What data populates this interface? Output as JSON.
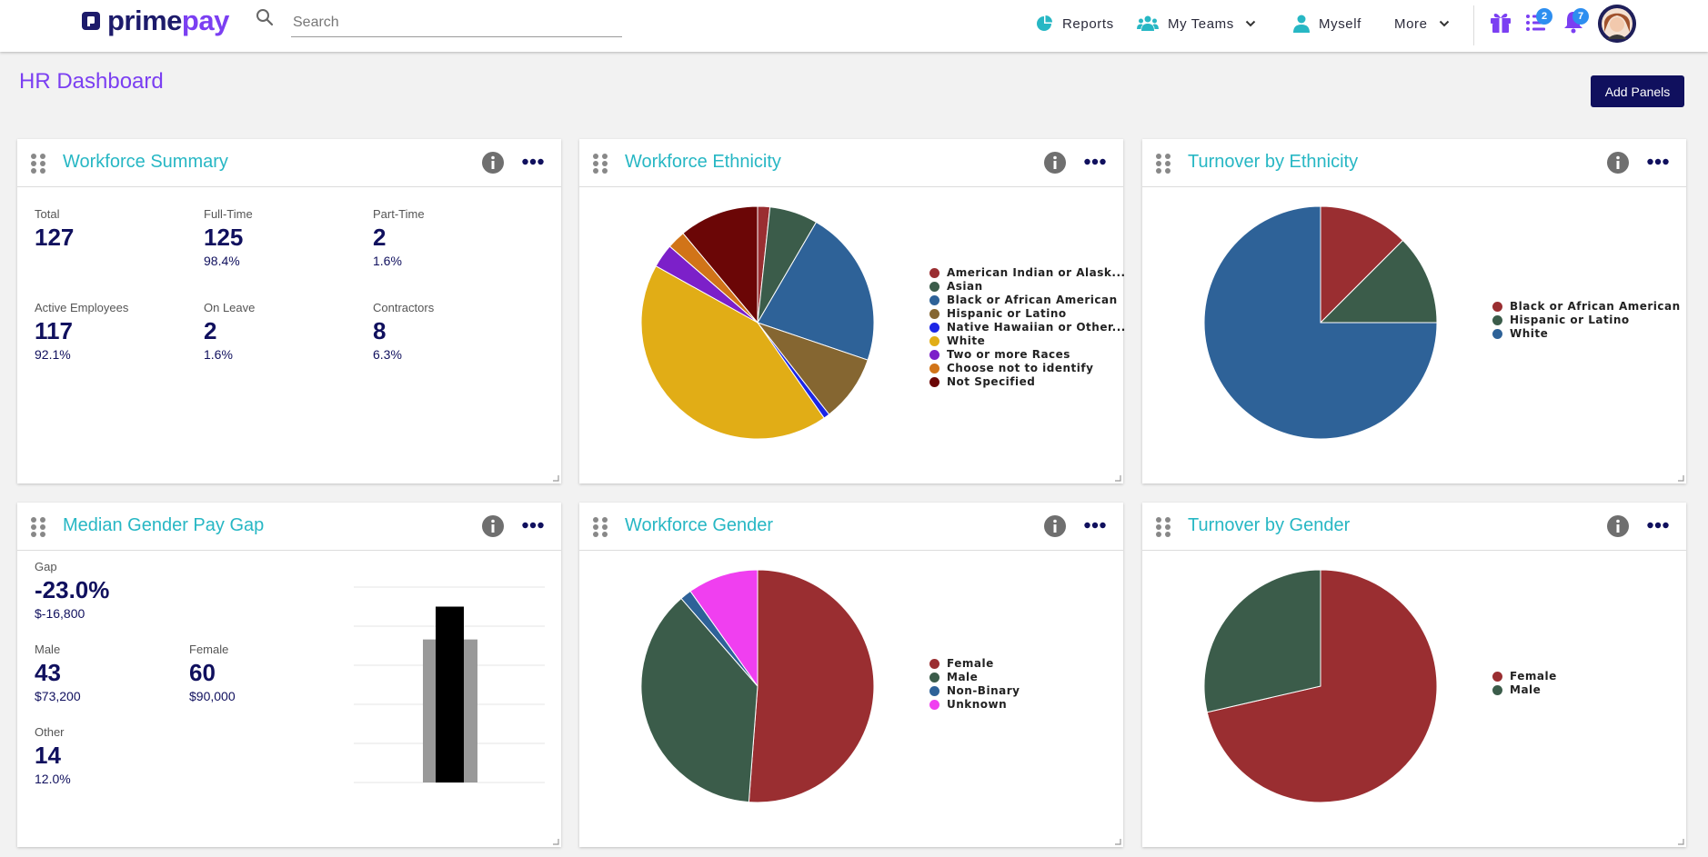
{
  "header": {
    "logo_part1": "prime",
    "logo_part2": "pay",
    "search_placeholder": "Search",
    "nav": {
      "reports": "Reports",
      "my_teams": "My Teams",
      "myself": "Myself",
      "more": "More"
    },
    "tasks_badge": "2",
    "notifications_badge": "7",
    "icons": [
      "pie-chart-icon",
      "team-icon",
      "person-icon",
      "chevron-down-icon",
      "gift-icon",
      "task-list-icon",
      "bell-icon"
    ]
  },
  "page": {
    "title": "HR Dashboard",
    "add_panels_label": "Add Panels"
  },
  "colors": {
    "brand_navy": "#10105e",
    "brand_purple": "#7b3ff2",
    "panel_title": "#27b7c4"
  },
  "panels": {
    "workforce_summary": {
      "title": "Workforce Summary",
      "stats": [
        {
          "label": "Total",
          "value": "127",
          "sub": ""
        },
        {
          "label": "Full-Time",
          "value": "125",
          "sub": "98.4%"
        },
        {
          "label": "Part-Time",
          "value": "2",
          "sub": "1.6%"
        },
        {
          "label": "Active Employees",
          "value": "117",
          "sub": "92.1%"
        },
        {
          "label": "On Leave",
          "value": "2",
          "sub": "1.6%"
        },
        {
          "label": "Contractors",
          "value": "8",
          "sub": "6.3%"
        }
      ]
    },
    "workforce_ethnicity": {
      "title": "Workforce Ethnicity"
    },
    "turnover_ethnicity": {
      "title": "Turnover by Ethnicity"
    },
    "gender_pay_gap": {
      "title": "Median Gender Pay Gap",
      "gap_label": "Gap",
      "gap_value": "-23.0%",
      "gap_amount": "$-16,800",
      "male_label": "Male",
      "male_value": "43",
      "male_amount": "$73,200",
      "female_label": "Female",
      "female_value": "60",
      "female_amount": "$90,000",
      "other_label": "Other",
      "other_value": "14",
      "other_pct": "12.0%"
    },
    "workforce_gender": {
      "title": "Workforce Gender"
    },
    "turnover_gender": {
      "title": "Turnover by Gender"
    }
  },
  "chart_data": [
    {
      "type": "pie",
      "title": "Workforce Ethnicity",
      "labels": [
        "American Indian or Alask...",
        "Asian",
        "Black or African American",
        "Hispanic or Latino",
        "Native Hawaiian or Other...",
        "White",
        "Two or more Races",
        "Choose not to identify",
        "Not Specified"
      ],
      "values": [
        1.6,
        6.3,
        20.5,
        8.7,
        0.8,
        40.2,
        3.1,
        2.4,
        10.4
      ],
      "colors": [
        "#9a2e31",
        "#3b5c4a",
        "#2e6298",
        "#856631",
        "#1c26e6",
        "#e1ad16",
        "#7c20c9",
        "#d17418",
        "#6b0606"
      ],
      "legend": "right"
    },
    {
      "type": "pie",
      "title": "Turnover by Ethnicity",
      "labels": [
        "Black or African American",
        "Hispanic or Latino",
        "White"
      ],
      "values": [
        12.5,
        12.5,
        75
      ],
      "colors": [
        "#9a2e31",
        "#3b5c4a",
        "#2e6298"
      ],
      "legend": "right"
    },
    {
      "type": "pie",
      "title": "Workforce Gender",
      "labels": [
        "Female",
        "Male",
        "Non-Binary",
        "Unknown"
      ],
      "values": [
        51.2,
        37.4,
        1.6,
        9.8
      ],
      "colors": [
        "#9a2e31",
        "#3b5c4a",
        "#2e6298",
        "#f03ff0"
      ],
      "legend": "right"
    },
    {
      "type": "pie",
      "title": "Turnover by Gender",
      "labels": [
        "Female",
        "Male"
      ],
      "values": [
        71.4,
        28.6
      ],
      "colors": [
        "#9a2e31",
        "#3b5c4a"
      ],
      "legend": "right"
    },
    {
      "type": "bar",
      "title": "Median Gender Pay Gap",
      "categories": [
        "Male",
        "Female"
      ],
      "values": [
        73200,
        90000
      ],
      "colors": [
        "#999999",
        "#000000"
      ],
      "ylim": [
        0,
        100000
      ],
      "grid": true
    }
  ]
}
